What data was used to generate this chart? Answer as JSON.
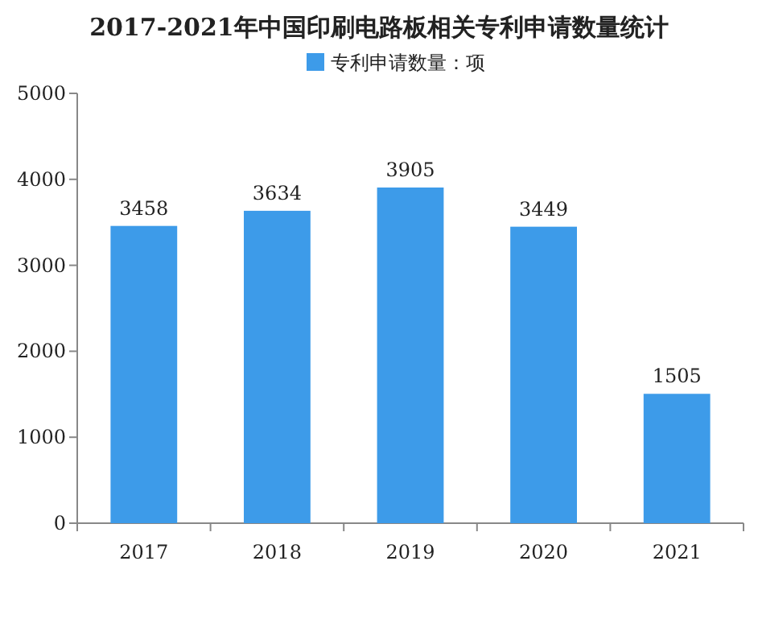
{
  "chart_data": {
    "type": "bar",
    "title": "2017-2021年中国印刷电路板相关专利申请数量统计",
    "categories": [
      "2017",
      "2018",
      "2019",
      "2020",
      "2021"
    ],
    "series": [
      {
        "name": "专利申请数量：项",
        "color": "#3d9be9",
        "values": [
          3458,
          3634,
          3905,
          3449,
          1505
        ]
      }
    ],
    "ylim": [
      0,
      5000
    ],
    "yticks": [
      0,
      1000,
      2000,
      3000,
      4000,
      5000
    ],
    "data_labels": true,
    "legend": "top"
  }
}
